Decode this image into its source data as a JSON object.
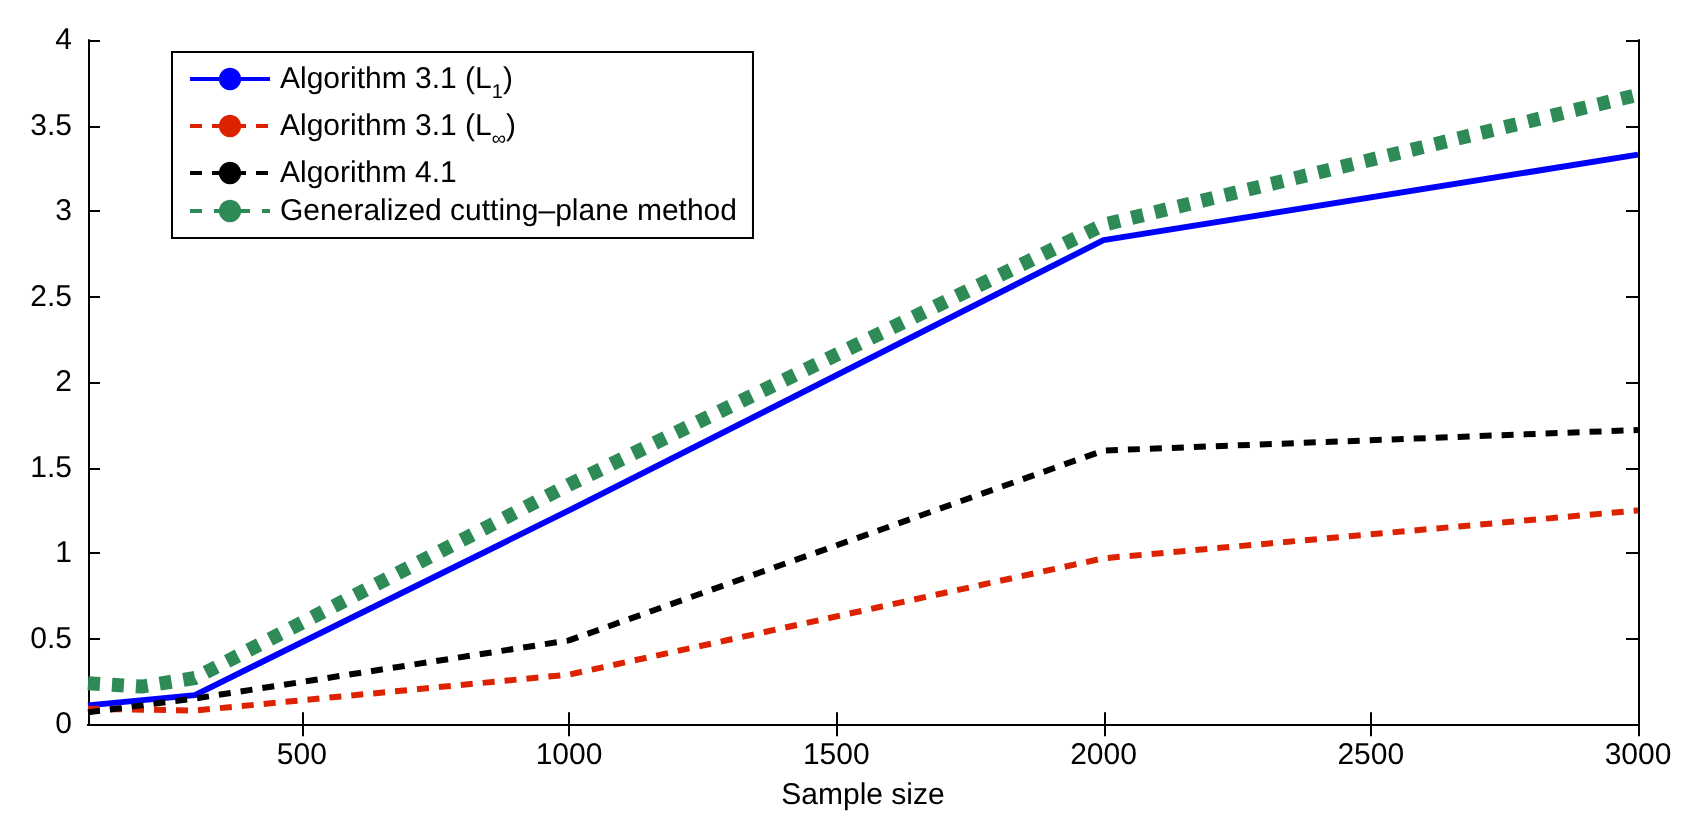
{
  "chart_data": {
    "type": "line",
    "xlabel": "Sample size",
    "xlim": [
      100,
      3000
    ],
    "xticks": [
      500,
      1000,
      1500,
      2000,
      2500,
      3000
    ],
    "ylim": [
      0,
      4
    ],
    "yticks": [
      0,
      0.5,
      1,
      1.5,
      2,
      2.5,
      3,
      3.5,
      4
    ],
    "grid": false,
    "legend": "top left",
    "marker": "none",
    "series": [
      {
        "name": "Algorithm 3.1 (L$_{1}$)",
        "color": "#0000ff",
        "line_style": "solid",
        "x": [
          100,
          300,
          1000,
          2000,
          3000
        ],
        "values": [
          0.11,
          0.17,
          1.25,
          2.83,
          3.33
        ]
      },
      {
        "name": "Algorithm 3.1 (L$_{∞}$)",
        "color": "#dd2200",
        "line_style": "dashed",
        "x": [
          100,
          300,
          1000,
          2000,
          3000
        ],
        "values": [
          0.09,
          0.08,
          0.29,
          0.97,
          1.25
        ]
      },
      {
        "name": "Algorithm 4.1",
        "color": "#000000",
        "line_style": "dashed",
        "x": [
          100,
          300,
          1000,
          2000,
          3000
        ],
        "values": [
          0.07,
          0.15,
          0.49,
          1.6,
          1.72
        ]
      },
      {
        "name": "Generalized cutting–plane method",
        "color": "#2e8b57",
        "line_style": "dotted",
        "x": [
          100,
          200,
          300,
          1000,
          2000,
          3000
        ],
        "values": [
          0.24,
          0.22,
          0.27,
          1.4,
          2.92,
          3.68
        ]
      }
    ]
  }
}
